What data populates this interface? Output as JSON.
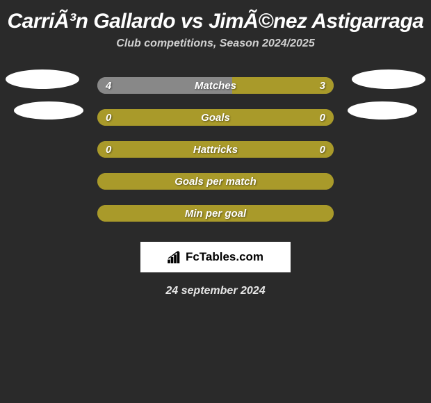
{
  "header": {
    "title": "CarriÃ³n Gallardo vs JimÃ©nez Astigarraga",
    "subtitle": "Club competitions, Season 2024/2025"
  },
  "colors": {
    "bg": "#2a2a2a",
    "bar_left": "#888888",
    "bar_right": "#a99a2a",
    "bar_full": "#a99a2a",
    "pill": "#ffffff",
    "text": "#ffffff"
  },
  "rows": [
    {
      "label": "Matches",
      "left_val": "4",
      "right_val": "3",
      "left_pct": 57,
      "right_pct": 43,
      "show_vals": true,
      "has_pill_left": true,
      "has_pill_right": true,
      "left_color": "#888888",
      "right_color": "#a99a2a"
    },
    {
      "label": "Goals",
      "left_val": "0",
      "right_val": "0",
      "left_pct": 50,
      "right_pct": 50,
      "show_vals": true,
      "has_pill_left": true,
      "has_pill_right": true,
      "left_color": "#a99a2a",
      "right_color": "#a99a2a"
    },
    {
      "label": "Hattricks",
      "left_val": "0",
      "right_val": "0",
      "left_pct": 50,
      "right_pct": 50,
      "show_vals": true,
      "has_pill_left": false,
      "has_pill_right": false,
      "left_color": "#a99a2a",
      "right_color": "#a99a2a"
    },
    {
      "label": "Goals per match",
      "left_val": "",
      "right_val": "",
      "left_pct": 100,
      "right_pct": 0,
      "show_vals": false,
      "has_pill_left": false,
      "has_pill_right": false,
      "left_color": "#a99a2a",
      "right_color": "#a99a2a"
    },
    {
      "label": "Min per goal",
      "left_val": "",
      "right_val": "",
      "left_pct": 100,
      "right_pct": 0,
      "show_vals": false,
      "has_pill_left": false,
      "has_pill_right": false,
      "left_color": "#a99a2a",
      "right_color": "#a99a2a"
    }
  ],
  "footer": {
    "badge_text": "FcTables.com",
    "date": "24 september 2024"
  }
}
